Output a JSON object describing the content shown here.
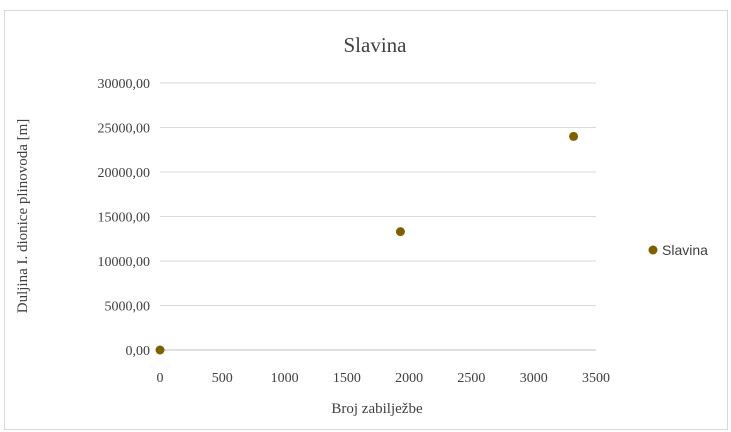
{
  "chart_data": {
    "type": "scatter",
    "title": "Slavina",
    "xlabel": "Broj zabilježbe",
    "ylabel": "Duljina  I. dionice plinovoda [m]",
    "xlim": [
      0,
      3500
    ],
    "ylim": [
      0,
      30000
    ],
    "x_ticks": [
      "0",
      "500",
      "1000",
      "1500",
      "2000",
      "2500",
      "3000",
      "3500"
    ],
    "y_ticks": [
      "0,00",
      "5000,00",
      "10000,00",
      "15000,00",
      "20000,00",
      "25000,00",
      "30000,00"
    ],
    "grid": true,
    "legend_position": "right",
    "series": [
      {
        "name": "Slavina",
        "color": "#7f6000",
        "points": [
          {
            "x": 0,
            "y": 0
          },
          {
            "x": 1930,
            "y": 13300
          },
          {
            "x": 3320,
            "y": 24000
          }
        ]
      }
    ]
  }
}
